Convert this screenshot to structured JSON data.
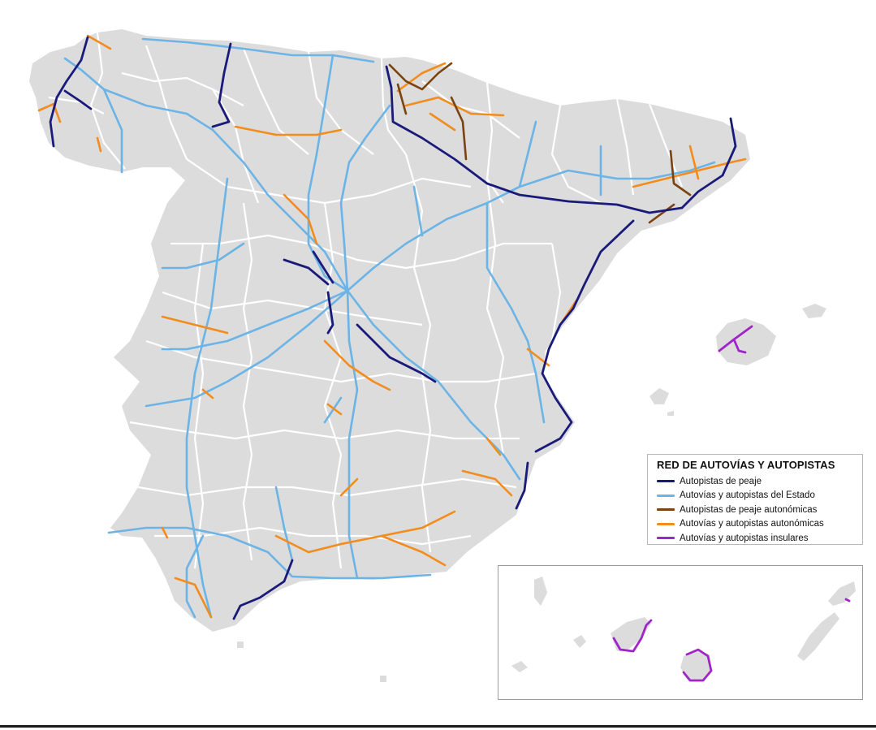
{
  "legend": {
    "title": "RED DE AUTOVÍAS  Y AUTOPISTAS",
    "items": [
      {
        "label": "Autopistas de peaje",
        "color": "#1a1a7a"
      },
      {
        "label": "Autovías y autopistas del Estado",
        "color": "#6cb4e6"
      },
      {
        "label": "Autopistas de peaje autonómicas",
        "color": "#7a4310"
      },
      {
        "label": "Autovías y autopistas autonómicas",
        "color": "#f28c1c"
      },
      {
        "label": "Autovías y autopistas insulares",
        "color": "#a024c8"
      }
    ]
  },
  "colors": {
    "land": "#dcdcdc",
    "province_border": "#ffffff",
    "sea": "#ffffff"
  }
}
